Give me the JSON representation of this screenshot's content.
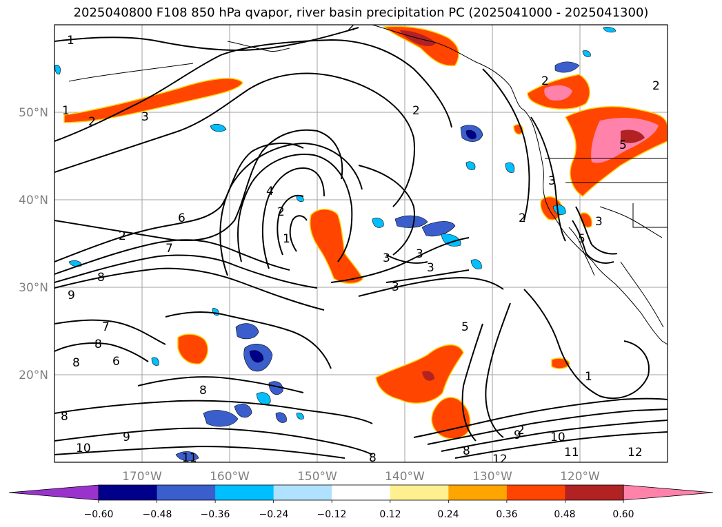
{
  "title": "2025040800 F108 850 hPa qvapor, river basin precipitation PC (2025041000 - 2025041300)",
  "map": {
    "lat_labels": [
      "50°N",
      "40°N",
      "30°N",
      "20°N"
    ],
    "lon_labels": [
      "170°W",
      "160°W",
      "150°W",
      "140°W",
      "130°W",
      "120°W"
    ],
    "lat_range": [
      10,
      60
    ],
    "lon_range": [
      -180,
      -110
    ],
    "contour_labels": [
      {
        "text": "1"
      },
      {
        "text": "1"
      },
      {
        "text": "2"
      },
      {
        "text": "3"
      },
      {
        "text": "2"
      },
      {
        "text": "2"
      },
      {
        "text": "2"
      },
      {
        "text": "4"
      },
      {
        "text": "2"
      },
      {
        "text": "1"
      },
      {
        "text": "6"
      },
      {
        "text": "2"
      },
      {
        "text": "7"
      },
      {
        "text": "8"
      },
      {
        "text": "9"
      },
      {
        "text": "3"
      },
      {
        "text": "3"
      },
      {
        "text": "3"
      },
      {
        "text": "3"
      },
      {
        "text": "7"
      },
      {
        "text": "8"
      },
      {
        "text": "8"
      },
      {
        "text": "6"
      },
      {
        "text": "8"
      },
      {
        "text": "5"
      },
      {
        "text": "8"
      },
      {
        "text": "9"
      },
      {
        "text": "10"
      },
      {
        "text": "11"
      },
      {
        "text": "8"
      },
      {
        "text": "1"
      },
      {
        "text": "9"
      },
      {
        "text": "10"
      },
      {
        "text": "11"
      },
      {
        "text": "12"
      },
      {
        "text": "12"
      },
      {
        "text": "8"
      },
      {
        "text": "2"
      },
      {
        "text": "3"
      },
      {
        "text": "5"
      },
      {
        "text": "3"
      },
      {
        "text": "2"
      },
      {
        "text": "5"
      },
      {
        "text": "2"
      }
    ]
  },
  "colorbar": {
    "colors": [
      "#9933cc",
      "#00008b",
      "#3a5fcd",
      "#00bfff",
      "#b0e2ff",
      "#ffffff",
      "#fff08f",
      "#ffa500",
      "#ff4500",
      "#b22222",
      "#ff82ab"
    ],
    "tick_labels": [
      "−0.60",
      "−0.48",
      "−0.36",
      "−0.24",
      "−0.12",
      "0.12",
      "0.24",
      "0.36",
      "0.48",
      "0.60"
    ],
    "extend": "both"
  }
}
